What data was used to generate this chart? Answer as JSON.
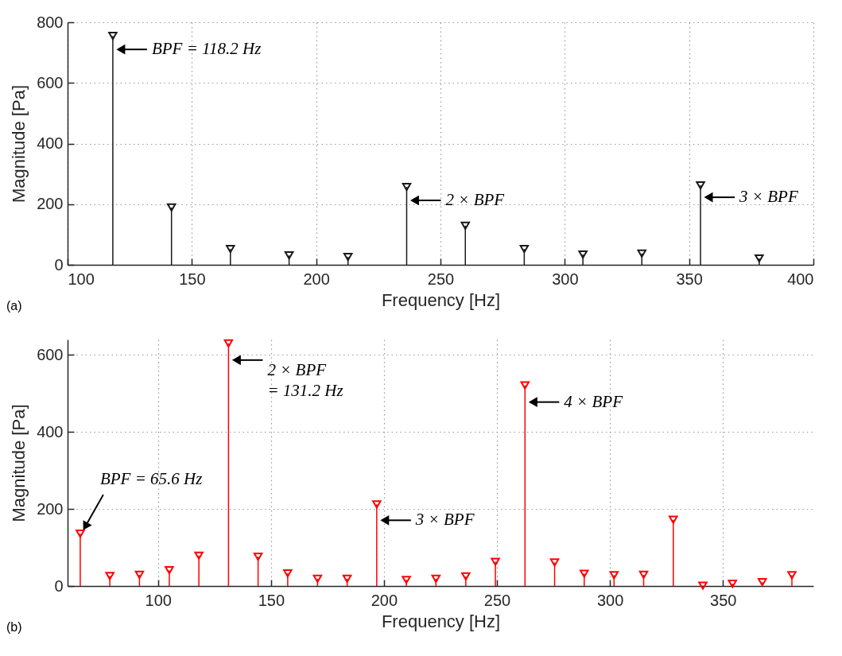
{
  "chart_data": [
    {
      "type": "lollipop",
      "xlabel": "Frequency [Hz]",
      "ylabel": "Magnitude [Pa]",
      "color": "#1a1a1a",
      "marker": "triangle",
      "grid": true,
      "x": [
        118.2,
        141.8,
        165.5,
        189.1,
        212.8,
        236.4,
        260,
        283.7,
        307.3,
        331,
        354.6,
        378.2
      ],
      "values": [
        755,
        189,
        52,
        31,
        26,
        257,
        129,
        52,
        34,
        37,
        262,
        21
      ],
      "xlim": [
        100,
        400
      ],
      "xticks": [
        100,
        150,
        200,
        250,
        300,
        350,
        400
      ],
      "ylim": [
        0,
        800
      ],
      "yticks": [
        0,
        200,
        400,
        600,
        800
      ],
      "annotations": [
        {
          "text": "BPF = 118.2 Hz",
          "x": 118.2,
          "y": 755
        },
        {
          "text": "2 × BPF",
          "x": 236.4,
          "y": 257
        },
        {
          "text": "3 × BPF",
          "x": 354.6,
          "y": 262
        },
        "(a)"
      ]
    },
    {
      "type": "lollipop",
      "xlabel": "Frequency [Hz]",
      "ylabel": "Magnitude [Pa]",
      "color": "#ff0000",
      "marker": "triangle",
      "grid": true,
      "x": [
        65.6,
        78.7,
        91.8,
        105,
        118.1,
        131.2,
        144.3,
        157.4,
        170.6,
        183.7,
        196.8,
        209.9,
        223,
        236.2,
        249.3,
        262.4,
        275.5,
        288.6,
        301.8,
        314.9,
        328,
        341.1,
        354.2,
        367.4,
        380.5
      ],
      "values": [
        136,
        26,
        29,
        41,
        79,
        630,
        76,
        33,
        19,
        19,
        212,
        16,
        19,
        25,
        63,
        521,
        61,
        32,
        28,
        29,
        172,
        1,
        6,
        10,
        28
      ],
      "xlim": [
        60,
        390
      ],
      "xticks": [
        100,
        150,
        200,
        250,
        300,
        350
      ],
      "ylim": [
        0,
        640
      ],
      "yticks": [
        0,
        200,
        400,
        600
      ],
      "annotations": [
        {
          "text": "2 × BPF\n= 131.2 Hz",
          "x": 131.2,
          "y": 630
        },
        {
          "text": "BPF = 65.6 Hz",
          "x": 65.6,
          "y": 136
        },
        {
          "text": "3 × BPF",
          "x": 196.8,
          "y": 212
        },
        {
          "text": "4 × BPF",
          "x": 262.4,
          "y": 521
        },
        "(b)"
      ]
    }
  ]
}
